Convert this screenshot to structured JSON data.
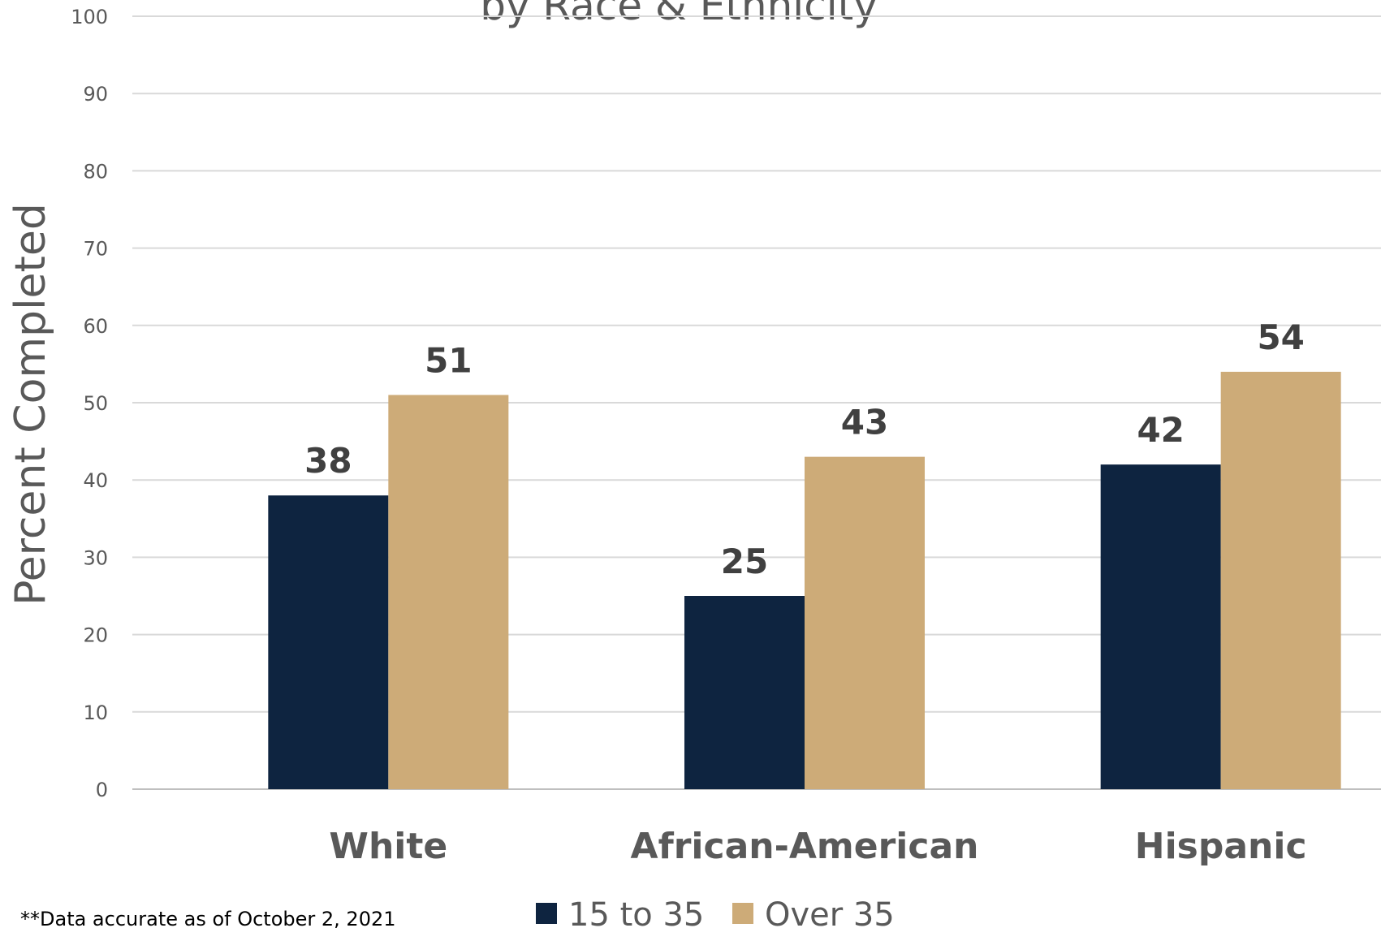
{
  "chart_data": {
    "type": "bar",
    "title": "by Race & Ethnicity",
    "ylabel": "Percent Completed",
    "xlabel": "",
    "ylim": [
      0,
      100
    ],
    "yticks": [
      0,
      10,
      20,
      30,
      40,
      50,
      60,
      70,
      80,
      90,
      100
    ],
    "grid": true,
    "legend_position": "bottom",
    "categories": [
      "White",
      "African-American",
      "Hispanic"
    ],
    "series": [
      {
        "name": "15 to 35",
        "color": "#0e2440",
        "values": [
          38,
          25,
          42
        ]
      },
      {
        "name": "Over 35",
        "color": "#cdab78",
        "values": [
          51,
          43,
          54
        ]
      }
    ]
  },
  "footnote": "**Data accurate as of October 2, 2021"
}
